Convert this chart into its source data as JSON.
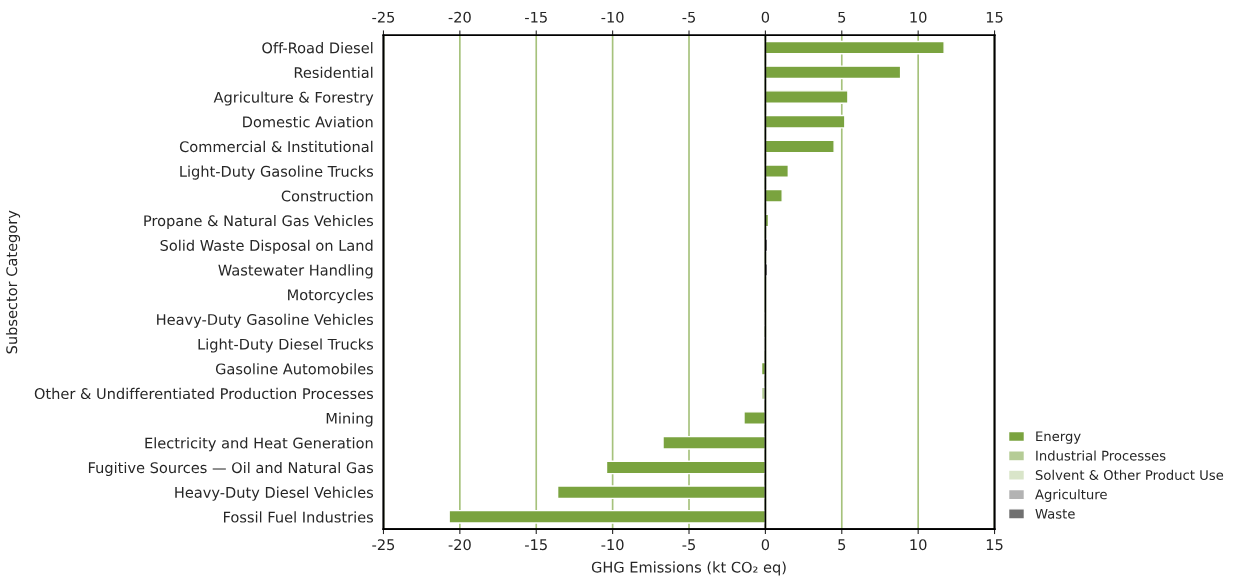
{
  "chart_data": {
    "type": "bar",
    "orientation": "horizontal",
    "xlabel": "GHG Emissions (kt CO₂ eq)",
    "ylabel": "Subsector Category",
    "categories": [
      "Off-Road Diesel",
      "Residential",
      "Agriculture & Forestry",
      "Domestic Aviation",
      "Commercial & Institutional",
      "Light-Duty Gasoline Trucks",
      "Construction",
      "Propane & Natural Gas Vehicles",
      "Solid Waste Disposal on Land",
      "Wastewater Handling",
      "Motorcycles",
      "Heavy-Duty Gasoline Vehicles",
      "Light-Duty Diesel Trucks",
      "Gasoline Automobiles",
      "Other & Undifferentiated Production Processes",
      "Mining",
      "Electricity and Heat Generation",
      "Fugitive Sources — Oil and Natural Gas",
      "Heavy-Duty Diesel Vehicles",
      "Fossil Fuel Industries"
    ],
    "series": [
      {
        "name": "Energy",
        "color": "#7aa33f",
        "values": [
          11.7,
          8.85,
          5.4,
          5.2,
          4.5,
          1.5,
          1.1,
          0.2,
          null,
          null,
          null,
          -0.1,
          -0.1,
          -0.25,
          null,
          -1.4,
          -6.7,
          -10.4,
          -13.6,
          -20.7
        ]
      },
      {
        "name": "Industrial Processes",
        "color": "#b5cc96",
        "values": [
          null,
          null,
          null,
          null,
          null,
          null,
          null,
          null,
          null,
          null,
          null,
          null,
          null,
          null,
          -0.25,
          null,
          null,
          null,
          null,
          null
        ]
      },
      {
        "name": "Solvent & Other Product Use",
        "color": "#d9e5c9",
        "values": [
          null,
          null,
          null,
          null,
          null,
          null,
          null,
          null,
          null,
          null,
          null,
          null,
          null,
          null,
          null,
          null,
          null,
          null,
          null,
          null
        ]
      },
      {
        "name": "Agriculture",
        "color": "#b3b3b3",
        "values": [
          null,
          null,
          null,
          null,
          null,
          null,
          null,
          null,
          null,
          null,
          null,
          null,
          null,
          null,
          null,
          null,
          null,
          null,
          null,
          null
        ]
      },
      {
        "name": "Waste",
        "color": "#707070",
        "values": [
          null,
          null,
          null,
          null,
          null,
          null,
          null,
          null,
          0.15,
          0.15,
          null,
          null,
          null,
          null,
          null,
          null,
          null,
          null,
          null,
          null
        ]
      }
    ],
    "xlim": [
      -25,
      15
    ],
    "xticks": [
      -25,
      -20,
      -15,
      -10,
      -5,
      0,
      5,
      10,
      15
    ],
    "x2lim": [
      -25,
      15
    ],
    "x2ticks": [
      -25,
      -20,
      -15,
      -10,
      -5,
      0,
      5,
      10,
      15
    ],
    "grid": "x",
    "legend": "bottom right"
  }
}
